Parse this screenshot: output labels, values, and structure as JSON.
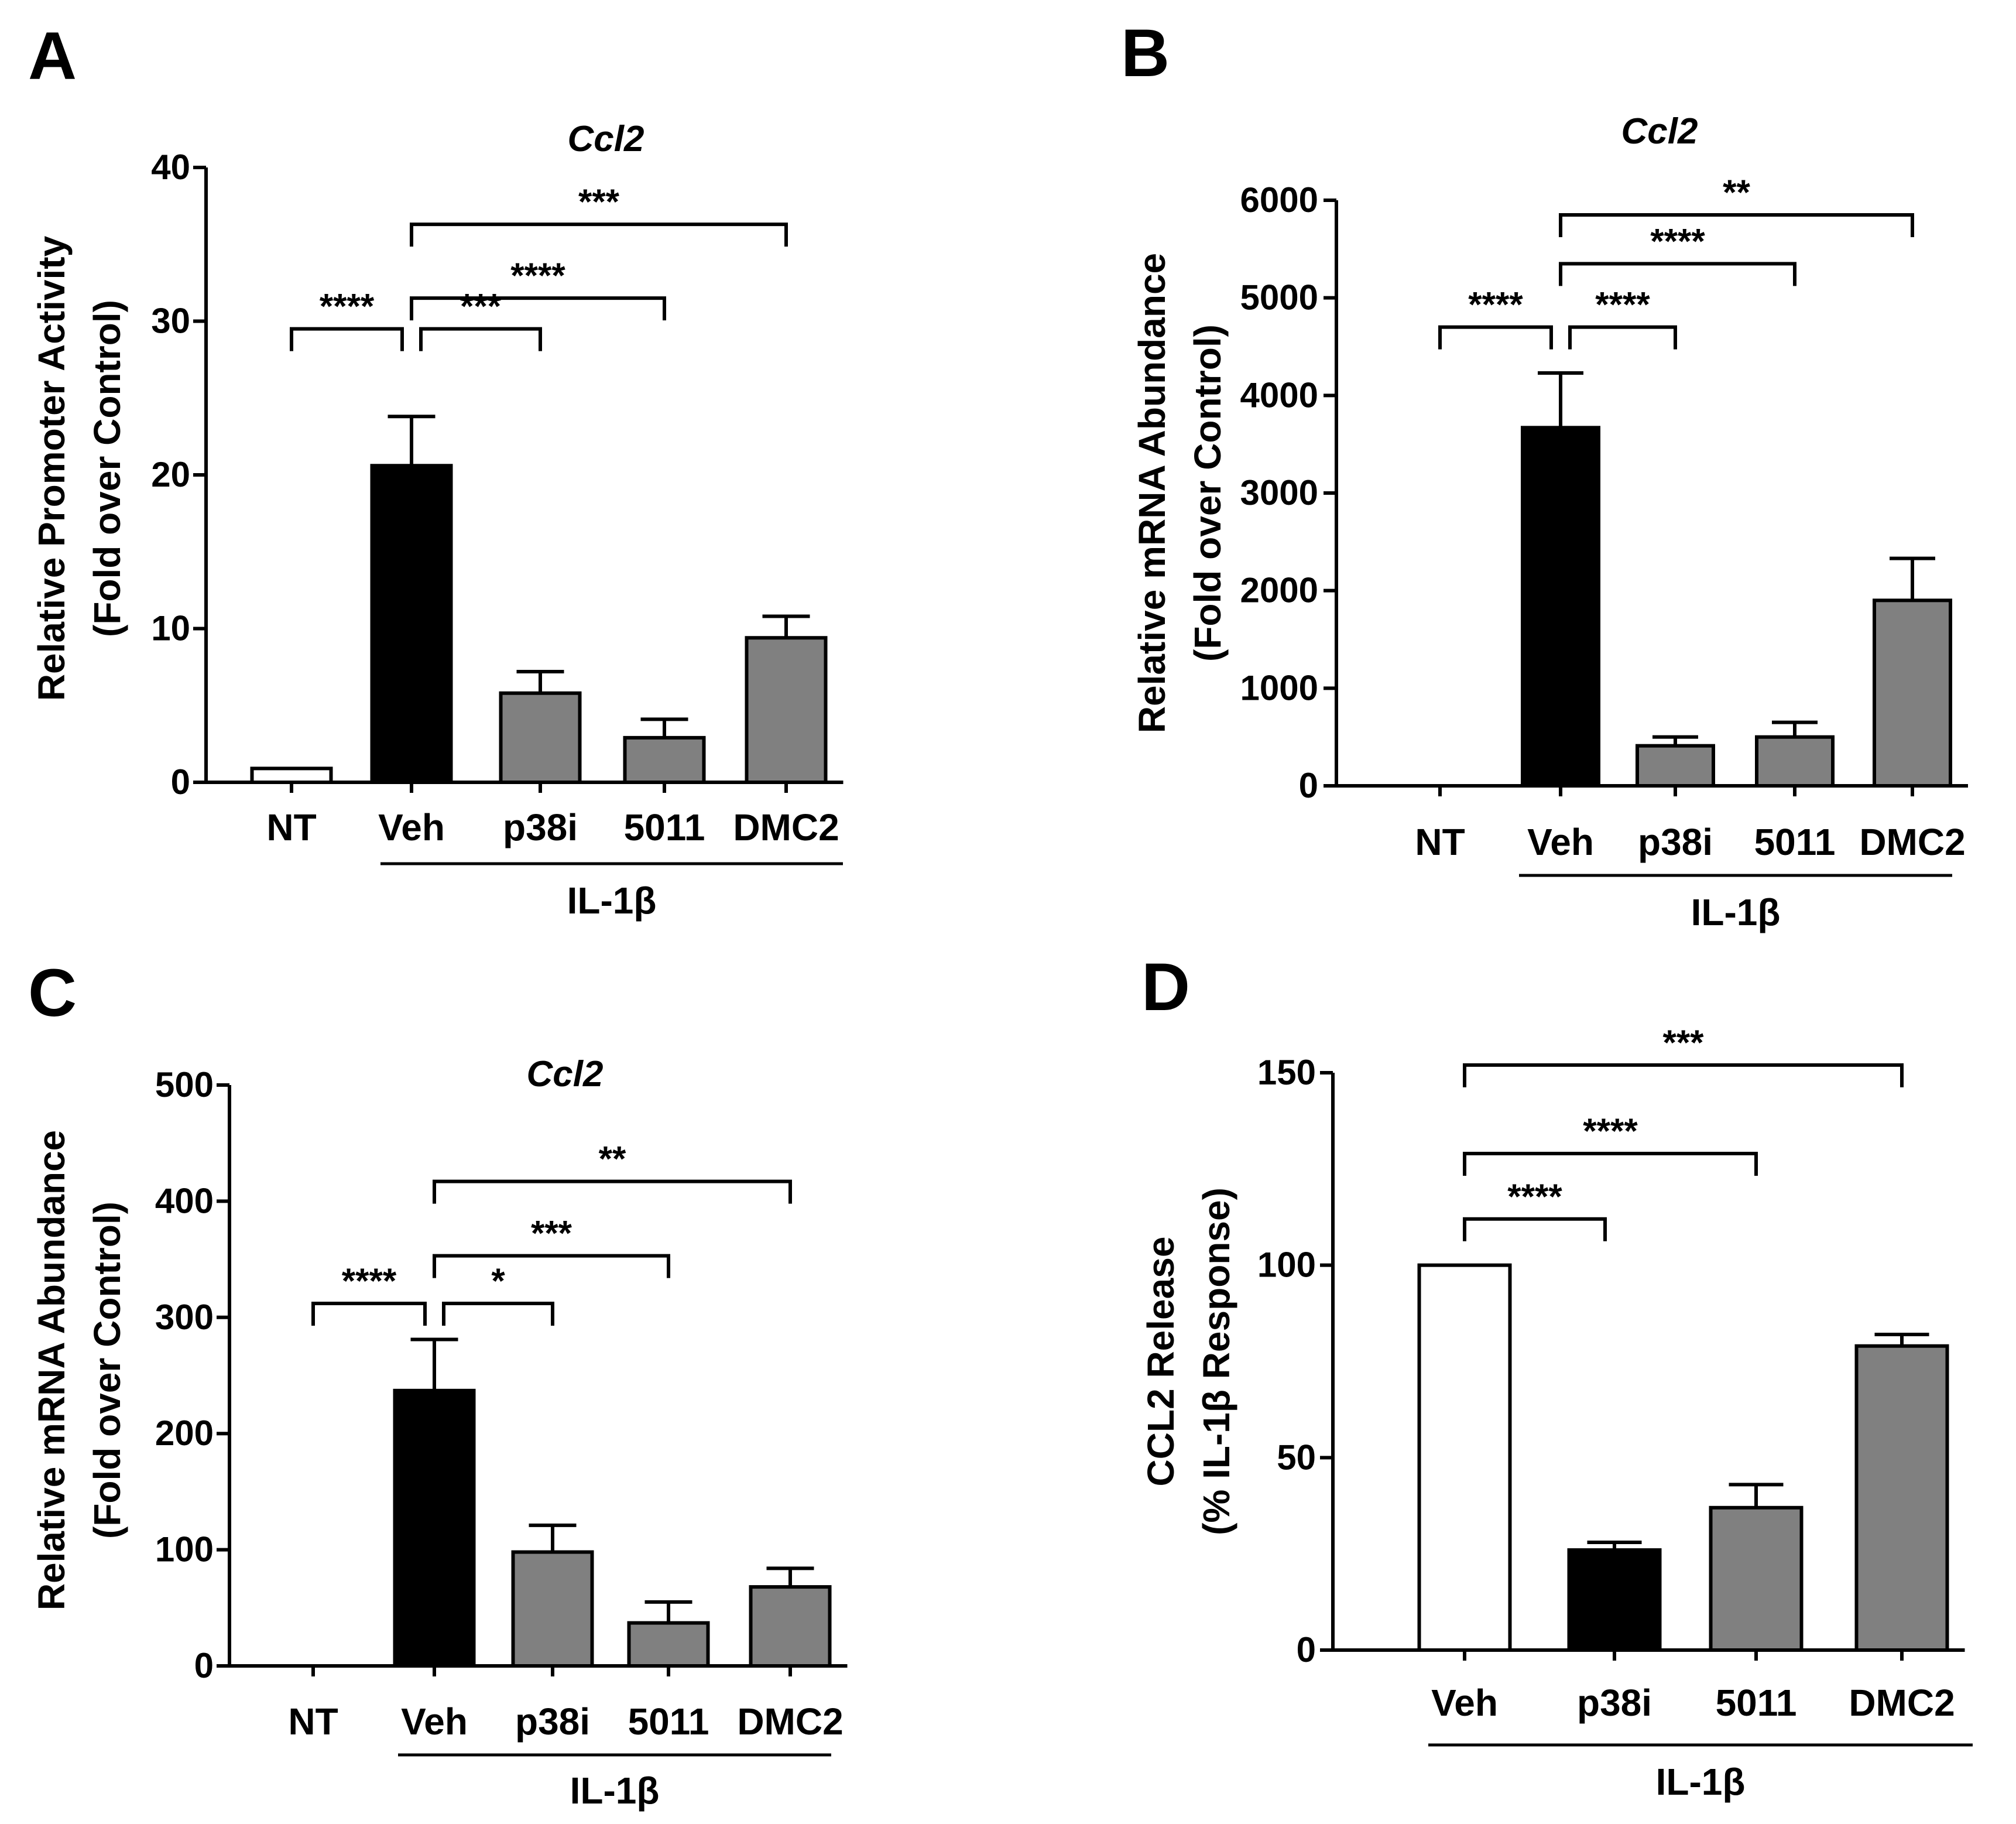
{
  "colors": {
    "white": "#ffffff",
    "black": "#000000",
    "gray": "#808080",
    "axis": "#000000"
  },
  "chart_data": [
    {
      "panel": "A",
      "type": "bar",
      "title": "Ccl2",
      "ylabel": "Relative Promoter Activity",
      "ylabel2": "(Fold over Control)",
      "group_label": "IL-1β",
      "categories": [
        "NT",
        "Veh",
        "p38i",
        "5011",
        "DMC2"
      ],
      "values": [
        0.9,
        20.6,
        5.8,
        2.9,
        9.4
      ],
      "errors": [
        0.0,
        3.2,
        1.4,
        1.2,
        1.4
      ],
      "fills": [
        "white",
        "black",
        "gray",
        "gray",
        "gray"
      ],
      "ylim": [
        0,
        40
      ],
      "yticks": [
        0,
        10,
        20,
        30,
        40
      ],
      "group_range": [
        1,
        4
      ],
      "sig": [
        {
          "from": 0,
          "to": 1,
          "label": "****",
          "level": 29.5
        },
        {
          "from": 1,
          "to": 2,
          "label": "***",
          "level": 29.5
        },
        {
          "from": 1,
          "to": 3,
          "label": "****",
          "level": 31.5
        },
        {
          "from": 1,
          "to": 4,
          "label": "***",
          "level": 36.3
        }
      ]
    },
    {
      "panel": "B",
      "type": "bar",
      "title": "Ccl2",
      "ylabel": "Relative mRNA Abundance",
      "ylabel2": "(Fold over Control)",
      "group_label": "IL-1β",
      "categories": [
        "NT",
        "Veh",
        "p38i",
        "5011",
        "DMC2"
      ],
      "values": [
        0,
        3670,
        410,
        500,
        1900
      ],
      "errors": [
        0,
        560,
        90,
        150,
        430
      ],
      "fills": [
        "white",
        "black",
        "gray",
        "gray",
        "gray"
      ],
      "ylim": [
        0,
        6000
      ],
      "yticks": [
        0,
        1000,
        2000,
        3000,
        4000,
        5000,
        6000
      ],
      "group_range": [
        1,
        4
      ],
      "sig": [
        {
          "from": 0,
          "to": 1,
          "label": "****",
          "level": 4700
        },
        {
          "from": 1,
          "to": 2,
          "label": "****",
          "level": 4700
        },
        {
          "from": 1,
          "to": 3,
          "label": "****",
          "level": 5350
        },
        {
          "from": 1,
          "to": 4,
          "label": "**",
          "level": 5850
        }
      ]
    },
    {
      "panel": "C",
      "type": "bar",
      "title": "Ccl2",
      "ylabel": "Relative mRNA Abundance",
      "ylabel2": "(Fold over Control)",
      "group_label": "IL-1β",
      "categories": [
        "NT",
        "Veh",
        "p38i",
        "5011",
        "DMC2"
      ],
      "values": [
        0,
        237,
        98,
        37,
        68
      ],
      "errors": [
        0,
        44,
        23,
        18,
        16
      ],
      "fills": [
        "white",
        "black",
        "gray",
        "gray",
        "gray"
      ],
      "ylim": [
        0,
        500
      ],
      "yticks": [
        0,
        100,
        200,
        300,
        400,
        500
      ],
      "group_range": [
        1,
        4
      ],
      "sig": [
        {
          "from": 0,
          "to": 1,
          "label": "****",
          "level": 312
        },
        {
          "from": 1,
          "to": 2,
          "label": "*",
          "level": 312
        },
        {
          "from": 1,
          "to": 3,
          "label": "***",
          "level": 353
        },
        {
          "from": 1,
          "to": 4,
          "label": "**",
          "level": 417
        }
      ]
    },
    {
      "panel": "D",
      "type": "bar",
      "title": "",
      "ylabel": "CCL2 Release",
      "ylabel2": "(% IL-1β Response)",
      "group_label": "IL-1β",
      "categories": [
        "Veh",
        "p38i",
        "5011",
        "DMC2"
      ],
      "values": [
        100,
        26,
        37,
        79
      ],
      "errors": [
        0,
        2,
        6,
        3
      ],
      "fills": [
        "white",
        "black",
        "gray",
        "gray"
      ],
      "ylim": [
        0,
        150
      ],
      "yticks": [
        0,
        50,
        100,
        150
      ],
      "group_range": [
        0,
        3
      ],
      "sig": [
        {
          "from": 0,
          "to": 1,
          "label": "****",
          "level": 112
        },
        {
          "from": 0,
          "to": 2,
          "label": "****",
          "level": 129
        },
        {
          "from": 0,
          "to": 3,
          "label": "***",
          "level": 152
        }
      ]
    }
  ]
}
